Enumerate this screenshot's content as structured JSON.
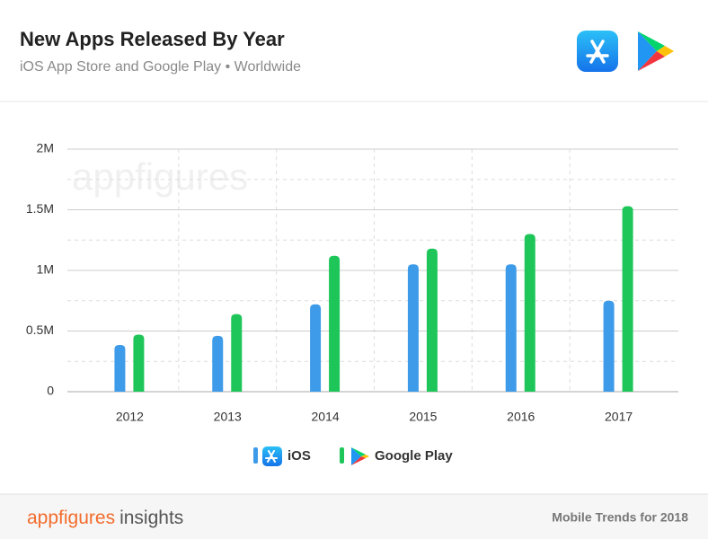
{
  "header": {
    "title": "New Apps Released By Year",
    "subtitle": "iOS App Store and Google Play • Worldwide"
  },
  "chart_data": {
    "type": "bar",
    "watermark": "appfigures",
    "categories": [
      "2012",
      "2013",
      "2014",
      "2015",
      "2016",
      "2017"
    ],
    "series": [
      {
        "name": "iOS",
        "color": "#3d9be9",
        "values": [
          385000,
          460000,
          720000,
          1050000,
          1050000,
          750000
        ]
      },
      {
        "name": "Google Play",
        "color": "#1ec65a",
        "values": [
          470000,
          640000,
          1120000,
          1180000,
          1300000,
          1530000
        ]
      }
    ],
    "ylim": [
      0,
      2000000
    ],
    "yticks": [
      {
        "value": 0,
        "label": "0"
      },
      {
        "value": 500000,
        "label": "0.5M"
      },
      {
        "value": 1000000,
        "label": "1M"
      },
      {
        "value": 1500000,
        "label": "1.5M"
      },
      {
        "value": 2000000,
        "label": "2M"
      }
    ],
    "minor_yticks": [
      250000,
      750000,
      1250000,
      1750000
    ],
    "grid": true
  },
  "footer": {
    "brand": "appfigures",
    "product": "insights",
    "note": "Mobile Trends for 2018"
  }
}
